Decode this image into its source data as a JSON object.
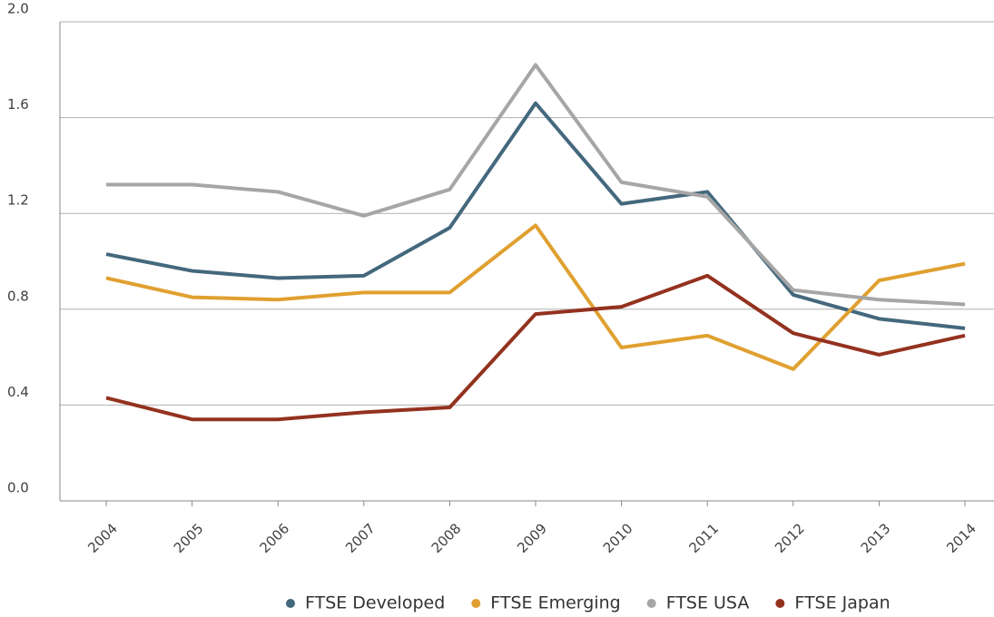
{
  "chart_data": {
    "type": "line",
    "categories": [
      "2004",
      "2005",
      "2006",
      "2007",
      "2008",
      "2009",
      "2010",
      "2011",
      "2012",
      "2013",
      "2014"
    ],
    "series": [
      {
        "name": "FTSE Developed",
        "color": "#44687d",
        "values": [
          1.03,
          0.96,
          0.93,
          0.94,
          1.14,
          1.66,
          1.24,
          1.29,
          0.86,
          0.76,
          0.72
        ]
      },
      {
        "name": "FTSE Emerging",
        "color": "#e0a030",
        "values": [
          0.93,
          0.85,
          0.84,
          0.87,
          0.87,
          1.15,
          0.64,
          0.69,
          0.55,
          0.92,
          0.99
        ]
      },
      {
        "name": "FTSE USA",
        "color": "#a6a6a6",
        "values": [
          1.32,
          1.32,
          1.29,
          1.19,
          1.3,
          1.82,
          1.33,
          1.27,
          0.88,
          0.84,
          0.82
        ]
      },
      {
        "name": "FTSE Japan",
        "color": "#93321f",
        "values": [
          0.43,
          0.34,
          0.34,
          0.37,
          0.39,
          0.78,
          0.81,
          0.94,
          0.7,
          0.61,
          0.69
        ]
      }
    ],
    "ylim": [
      0,
      2.0
    ],
    "yticks": [
      {
        "value": 0,
        "label": "0.0"
      },
      0.4,
      0.8,
      1.2,
      1.6,
      {
        "value": 2,
        "label": "2.0"
      }
    ],
    "grid": true,
    "legend": "bottom"
  }
}
